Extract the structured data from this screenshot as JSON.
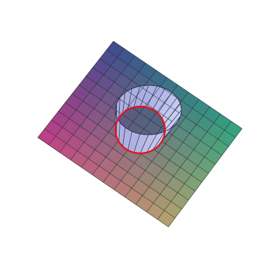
{
  "figure": {
    "description_visible_text": "",
    "surface": {
      "grid_cells_u": 12,
      "grid_cells_v": 11,
      "grid_line_color": "#1f2a26"
    },
    "corner_colors": {
      "top": "#3b4a90",
      "right": "#2fa57e",
      "bottom": "#b8a36e",
      "left": "#c23b86"
    },
    "hole": {
      "wall_color": "#d9dcff",
      "wall_shade_color": "#8a8fd8",
      "rim_color": "#e0141c",
      "wall_segments": 24
    }
  }
}
